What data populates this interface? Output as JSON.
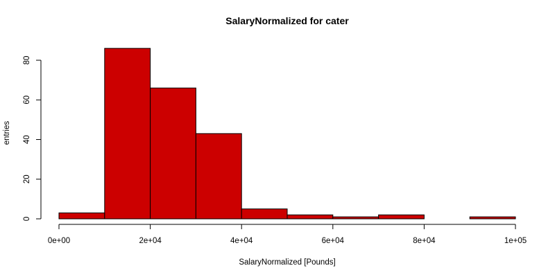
{
  "chart_data": {
    "type": "bar",
    "title": "SalaryNormalized for cater",
    "xlabel": "SalaryNormalized [Pounds]",
    "ylabel": "entries",
    "bins": [
      {
        "start": 0,
        "end": 10000,
        "count": 3
      },
      {
        "start": 10000,
        "end": 20000,
        "count": 86
      },
      {
        "start": 20000,
        "end": 30000,
        "count": 66
      },
      {
        "start": 30000,
        "end": 40000,
        "count": 43
      },
      {
        "start": 40000,
        "end": 50000,
        "count": 5
      },
      {
        "start": 50000,
        "end": 60000,
        "count": 2
      },
      {
        "start": 60000,
        "end": 70000,
        "count": 1
      },
      {
        "start": 70000,
        "end": 80000,
        "count": 2
      },
      {
        "start": 80000,
        "end": 90000,
        "count": 0
      },
      {
        "start": 90000,
        "end": 100000,
        "count": 1
      }
    ],
    "xlim": [
      0,
      100000
    ],
    "ylim": [
      0,
      86
    ],
    "xticks": [
      {
        "value": 0,
        "label": "0e+00"
      },
      {
        "value": 20000,
        "label": "2e+04"
      },
      {
        "value": 40000,
        "label": "4e+04"
      },
      {
        "value": 60000,
        "label": "6e+04"
      },
      {
        "value": 80000,
        "label": "8e+04"
      },
      {
        "value": 100000,
        "label": "1e+05"
      }
    ],
    "yticks": [
      {
        "value": 0,
        "label": "0"
      },
      {
        "value": 20,
        "label": "20"
      },
      {
        "value": 40,
        "label": "40"
      },
      {
        "value": 60,
        "label": "60"
      },
      {
        "value": 80,
        "label": "80"
      }
    ],
    "colors": {
      "bar_fill": "#cc0000",
      "bar_stroke": "#000000",
      "axis": "#000000"
    }
  }
}
